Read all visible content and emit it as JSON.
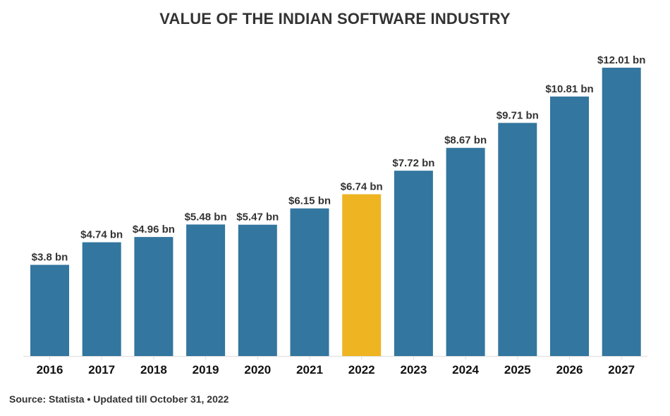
{
  "chart_data": {
    "type": "bar",
    "title": "VALUE OF THE INDIAN SOFTWARE INDUSTRY",
    "xlabel": "",
    "ylabel": "",
    "categories": [
      "2016",
      "2017",
      "2018",
      "2019",
      "2020",
      "2021",
      "2022",
      "2023",
      "2024",
      "2025",
      "2026",
      "2027"
    ],
    "values": [
      3.8,
      4.74,
      4.96,
      5.48,
      5.47,
      6.15,
      6.74,
      7.72,
      8.67,
      9.71,
      10.81,
      12.01
    ],
    "data_labels": [
      "$3.8 bn",
      "$4.74 bn",
      "$4.96 bn",
      "$5.48 bn",
      "$5.47 bn",
      "$6.15 bn",
      "$6.74 bn",
      "$7.72 bn",
      "$8.67 bn",
      "$9.71 bn",
      "$10.81 bn",
      "$12.01 bn"
    ],
    "units": "USD billion",
    "highlight_category": "2022",
    "ylim": [
      0,
      12.01
    ],
    "grid": false,
    "legend": "none",
    "colors": {
      "bar": "#33769f",
      "highlight": "#eeb422",
      "baseline": "#e6e6e6"
    }
  },
  "footer": {
    "source": "Source: Statista • Updated till October 31, 2022"
  }
}
